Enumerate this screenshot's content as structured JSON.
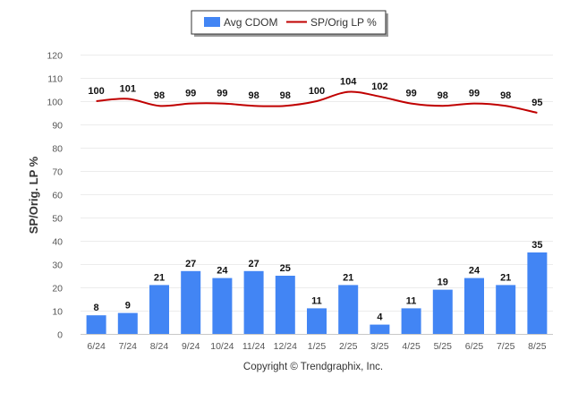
{
  "chart_data": {
    "type": "bar",
    "title": "",
    "xlabel": "",
    "ylabel": "SP/Orig. LP %",
    "ylim": [
      0,
      120
    ],
    "yticks": [
      0,
      10,
      20,
      30,
      40,
      50,
      60,
      70,
      80,
      90,
      100,
      110,
      120
    ],
    "grid": true,
    "legend_position": "top-center",
    "categories": [
      "6/24",
      "7/24",
      "8/24",
      "9/24",
      "10/24",
      "11/24",
      "12/24",
      "1/25",
      "2/25",
      "3/25",
      "4/25",
      "5/25",
      "6/25",
      "7/25",
      "8/25"
    ],
    "series": [
      {
        "name": "Avg CDOM",
        "type": "bar",
        "color": "#4285f4",
        "values": [
          8,
          9,
          21,
          27,
          24,
          27,
          25,
          11,
          21,
          4,
          11,
          19,
          24,
          21,
          35
        ]
      },
      {
        "name": "SP/Orig LP %",
        "type": "line",
        "color": "#c00000",
        "values": [
          100,
          101,
          98,
          99,
          99,
          98,
          98,
          100,
          104,
          102,
          99,
          98,
          99,
          98,
          95
        ]
      }
    ],
    "footer": "Copyright © Trendgraphix, Inc."
  }
}
